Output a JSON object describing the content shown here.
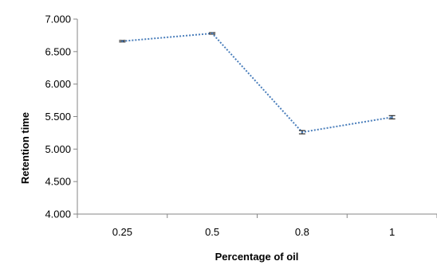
{
  "chart_data": {
    "type": "line",
    "title": "",
    "xlabel": "Percentage of oil",
    "ylabel": "Retention time",
    "categories": [
      "0.25",
      "0.5",
      "0.8",
      "1"
    ],
    "series": [
      {
        "values": [
          6.66,
          6.78,
          5.26,
          5.49
        ],
        "errors": [
          0.012,
          0.012,
          0.025,
          0.025
        ],
        "color": "#4a7ebb",
        "line_style": "dotted"
      }
    ],
    "ylim": [
      4.0,
      7.0
    ],
    "yticks": [
      "4.000",
      "4.500",
      "5.000",
      "5.500",
      "6.000",
      "6.500",
      "7.000"
    ],
    "ytick_values": [
      4.0,
      4.5,
      5.0,
      5.5,
      6.0,
      6.5,
      7.0
    ],
    "grid": false,
    "legend": "none"
  }
}
